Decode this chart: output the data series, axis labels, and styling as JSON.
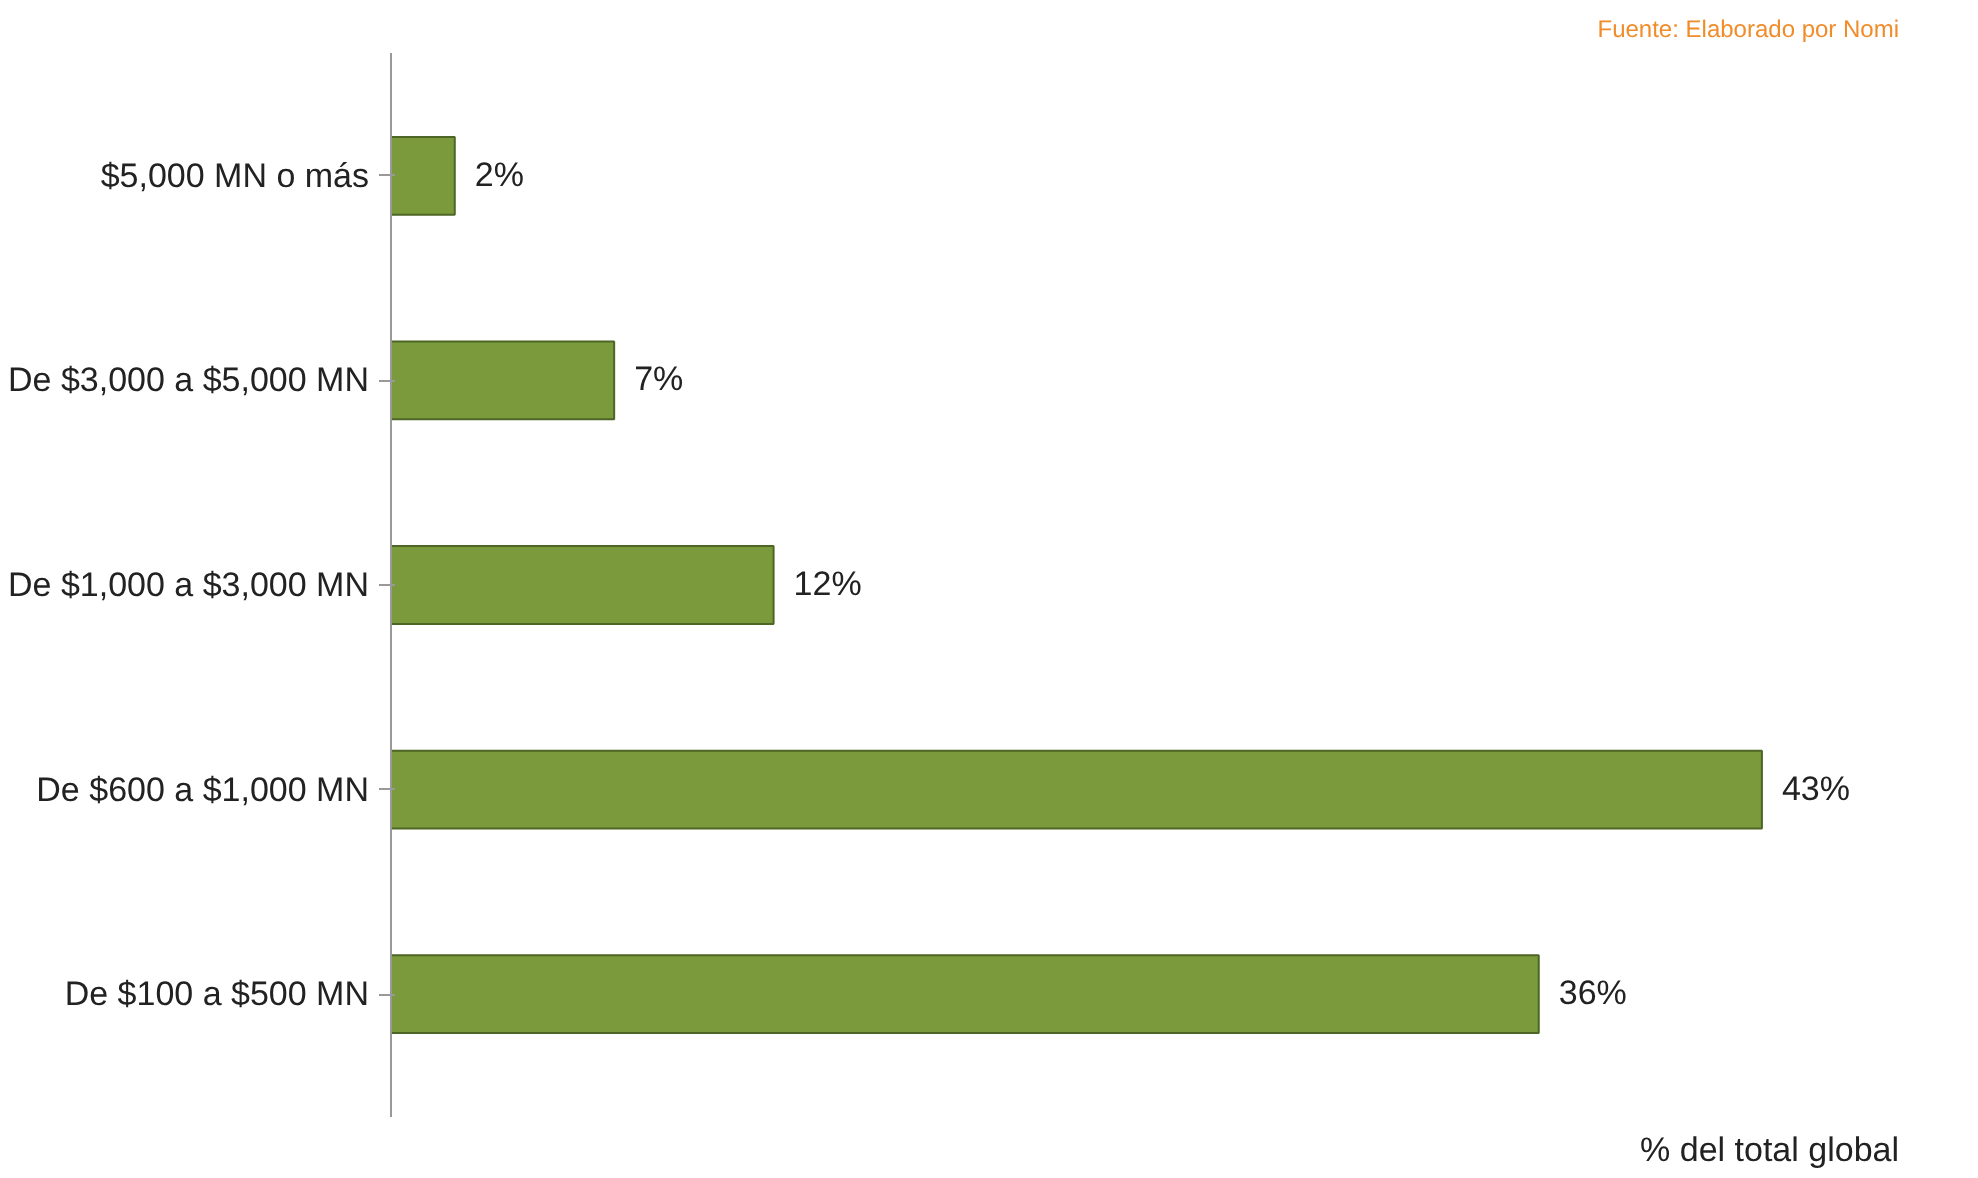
{
  "chart_data": {
    "type": "bar",
    "orientation": "horizontal",
    "categories": [
      "$5,000 MN o más",
      "De $3,000 a $5,000 MN",
      "De $1,000 a $3,000 MN",
      "De $600 a $1,000 MN",
      "De $100 a $500 MN"
    ],
    "values": [
      2,
      7,
      12,
      43,
      36
    ],
    "value_labels": [
      "2%",
      "7%",
      "12%",
      "43%",
      "36%"
    ],
    "color": "#7a9a3c",
    "xlabel": "% del total global",
    "annotations": [
      "Fuente: Elaborado por Nomi"
    ],
    "grid": false
  }
}
